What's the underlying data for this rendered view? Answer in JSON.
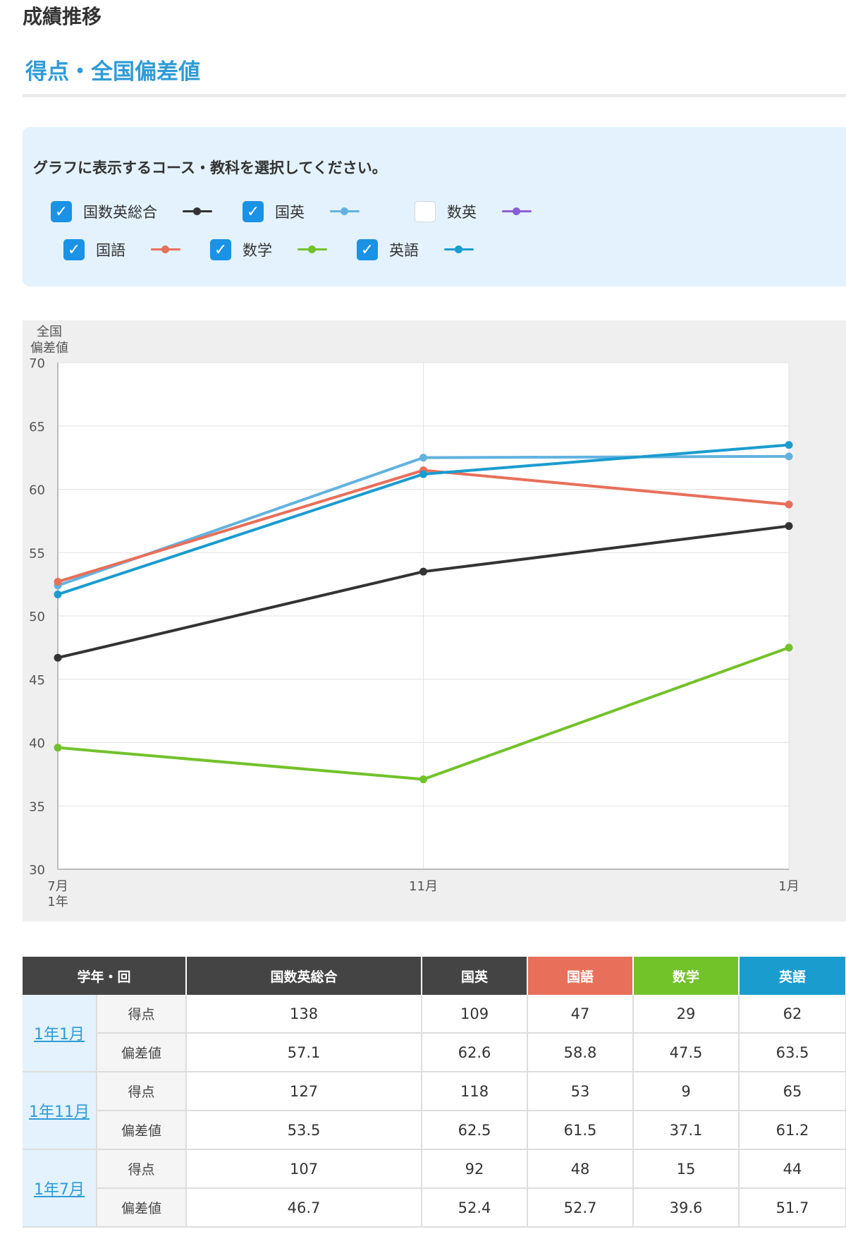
{
  "header": {
    "title": "成績推移",
    "subtitle": "得点・全国偏差値"
  },
  "selector": {
    "prompt": "グラフに表示するコース・教科を選択してください。",
    "check_mark": "✓",
    "options": [
      {
        "label": "国数英総合",
        "checked": true,
        "color": "#333333"
      },
      {
        "label": "国英",
        "checked": true,
        "color": "#62b2e0"
      },
      {
        "label": "数英",
        "checked": false,
        "color": "#8b5fd4"
      },
      {
        "label": "国語",
        "checked": true,
        "color": "#e86f5a"
      },
      {
        "label": "数学",
        "checked": true,
        "color": "#72c22a"
      },
      {
        "label": "英語",
        "checked": true,
        "color": "#1a9ccf"
      }
    ]
  },
  "chart_data": {
    "type": "line",
    "ylabel": [
      "全国",
      "偏差値"
    ],
    "ylim": [
      30,
      70
    ],
    "yticks": [
      30,
      35,
      40,
      45,
      50,
      55,
      60,
      65,
      70
    ],
    "x": [
      "7月",
      "11月",
      "1月"
    ],
    "x_sublabels": [
      "1年",
      "",
      ""
    ],
    "grid": true,
    "series": [
      {
        "name": "国数英総合",
        "color": "#333333",
        "values": [
          46.7,
          53.5,
          57.1
        ]
      },
      {
        "name": "国英",
        "color": "#62b2e0",
        "values": [
          52.4,
          62.5,
          62.6
        ]
      },
      {
        "name": "国語",
        "color": "#e86f5a",
        "values": [
          52.7,
          61.5,
          58.8
        ]
      },
      {
        "name": "数学",
        "color": "#72c22a",
        "values": [
          39.6,
          37.1,
          47.5
        ]
      },
      {
        "name": "英語",
        "color": "#1a9ccf",
        "values": [
          51.7,
          61.2,
          63.5
        ]
      }
    ]
  },
  "table": {
    "headers": [
      {
        "label": "学年・回",
        "color": "#444444"
      },
      {
        "label": "国数英総合",
        "color": "#444444"
      },
      {
        "label": "国英",
        "color": "#444444"
      },
      {
        "label": "国語",
        "color": "#e86f5a"
      },
      {
        "label": "数学",
        "color": "#72c22a"
      },
      {
        "label": "英語",
        "color": "#1a9ccf"
      }
    ],
    "row_types": [
      "得点",
      "偏差値"
    ],
    "periods": [
      {
        "label": "1年1月",
        "score": [
          138,
          109,
          47,
          29,
          62
        ],
        "deviation": [
          57.1,
          62.6,
          58.8,
          47.5,
          63.5
        ]
      },
      {
        "label": "1年11月",
        "score": [
          127,
          118,
          53,
          9,
          65
        ],
        "deviation": [
          53.5,
          62.5,
          61.5,
          37.1,
          61.2
        ]
      },
      {
        "label": "1年7月",
        "score": [
          107,
          92,
          48,
          15,
          44
        ],
        "deviation": [
          46.7,
          52.4,
          52.7,
          39.6,
          51.7
        ]
      }
    ]
  }
}
